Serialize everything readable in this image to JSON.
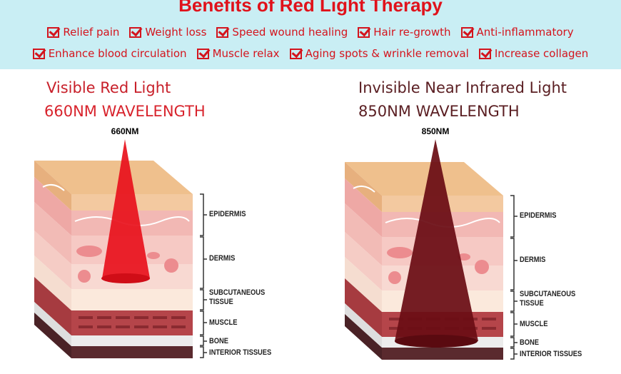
{
  "header": {
    "title": "Benefits of Red Light Therapy",
    "benefits": [
      "Relief pain",
      "Weight loss",
      "Speed wound healing",
      "Hair re-growth",
      "Anti-inflammatory",
      "Enhance blood circulation",
      "Muscle relax",
      "Aging spots & wrinkle removal",
      "Increase collagen"
    ]
  },
  "panels": [
    {
      "title": "Visible Red Light",
      "wavelength": "660NM WAVELENGTH",
      "beam_label": "660NM"
    },
    {
      "title": "Invisible Near Infrared Light",
      "wavelength": "850NM WAVELENGTH",
      "beam_label": "850NM"
    }
  ],
  "layers": [
    "EPIDERMIS",
    "DERMIS",
    "SUBCUTANEOUS TISSUE",
    "MUSCLE",
    "BONE",
    "INTERIOR TISSUES"
  ]
}
